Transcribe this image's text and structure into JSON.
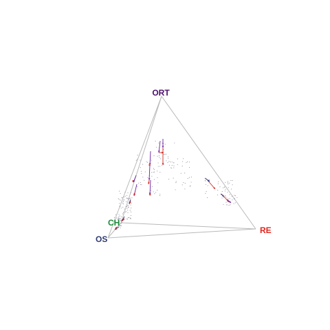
{
  "labels": {
    "top": "ORT",
    "right": "RE",
    "bottom_left": "OS",
    "inner": "CH"
  },
  "colors": {
    "top": "#4b0f6b",
    "right": "#e2241b",
    "bottom_left": "#2e3a6e",
    "inner": "#1f8a3a",
    "edges": "#b9b9b9",
    "points": "#8a8a9a",
    "arrow_purple": "#6a1fa0",
    "arrow_red": "#d2281e",
    "arrow_blue": "#2a3a8a"
  }
}
